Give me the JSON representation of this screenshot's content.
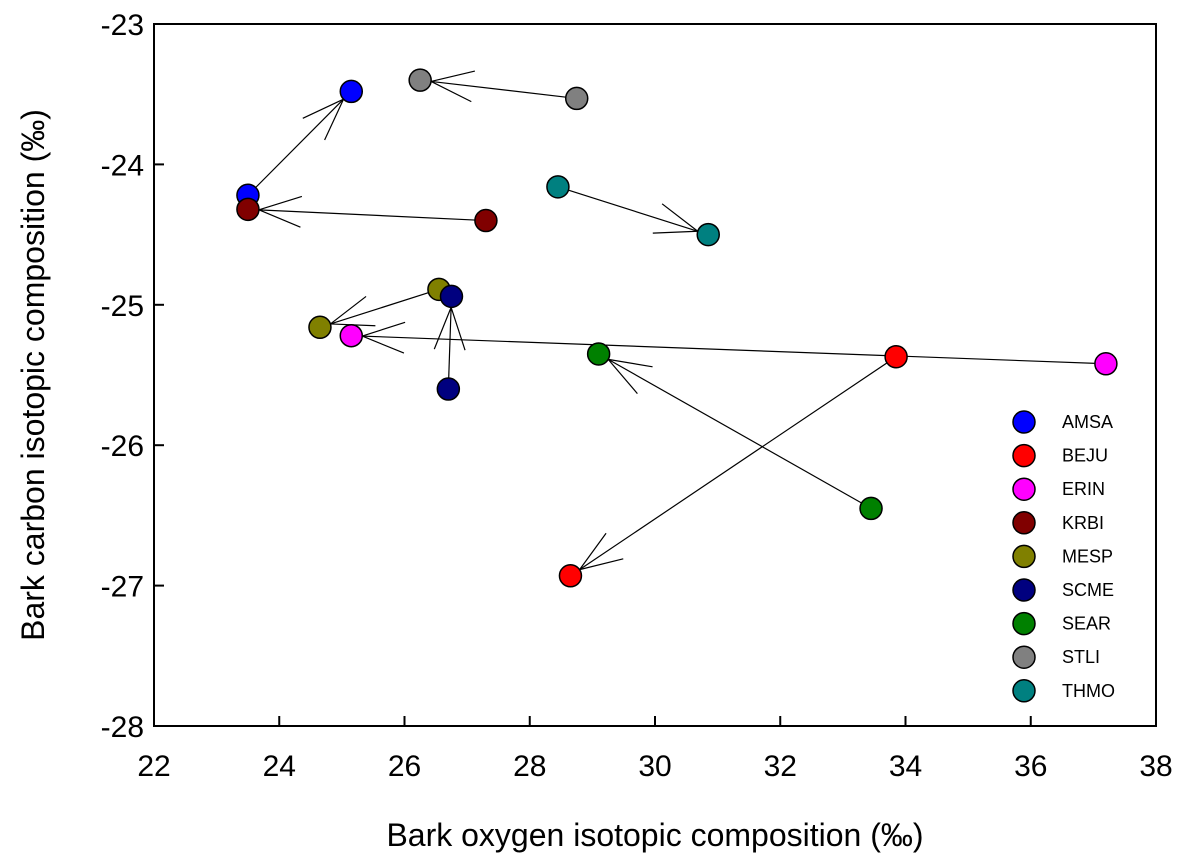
{
  "chart_data": {
    "type": "scatter",
    "title": "",
    "xlabel": "Bark oxygen isotopic composition (‰)",
    "ylabel": "Bark carbon isotopic composition (‰)",
    "xlim": [
      22,
      38
    ],
    "ylim": [
      -28,
      -23
    ],
    "xticks": [
      "22",
      "24",
      "26",
      "28",
      "30",
      "32",
      "34",
      "36",
      "38"
    ],
    "yticks": [
      "-28",
      "-27",
      "-26",
      "-25",
      "-24",
      "-23"
    ],
    "grid": false,
    "legend_position": "bottom-right",
    "series": [
      {
        "name": "AMSA",
        "color": "#0000ff",
        "points": [
          {
            "x": 23.5,
            "y": -24.22
          },
          {
            "x": 25.15,
            "y": -23.48
          }
        ],
        "arrow_from": 0,
        "arrow_to": 1
      },
      {
        "name": "BEJU",
        "color": "#ff0000",
        "points": [
          {
            "x": 33.85,
            "y": -25.37
          },
          {
            "x": 28.65,
            "y": -26.93
          }
        ],
        "arrow_from": 0,
        "arrow_to": 1
      },
      {
        "name": "ERIN",
        "color": "#ff00ff",
        "points": [
          {
            "x": 37.2,
            "y": -25.42
          },
          {
            "x": 25.15,
            "y": -25.22
          }
        ],
        "arrow_from": 0,
        "arrow_to": 1
      },
      {
        "name": "KRBI",
        "color": "#800000",
        "points": [
          {
            "x": 27.3,
            "y": -24.4
          },
          {
            "x": 23.5,
            "y": -24.32
          }
        ],
        "arrow_from": 0,
        "arrow_to": 1
      },
      {
        "name": "MESP",
        "color": "#808000",
        "points": [
          {
            "x": 26.55,
            "y": -24.89
          },
          {
            "x": 24.65,
            "y": -25.16
          }
        ],
        "arrow_from": 0,
        "arrow_to": 1
      },
      {
        "name": "SCME",
        "color": "#00007f",
        "points": [
          {
            "x": 26.7,
            "y": -25.6
          },
          {
            "x": 26.75,
            "y": -24.94
          }
        ],
        "arrow_from": 0,
        "arrow_to": 1
      },
      {
        "name": "SEAR",
        "color": "#008000",
        "points": [
          {
            "x": 33.45,
            "y": -26.45
          },
          {
            "x": 29.1,
            "y": -25.35
          }
        ],
        "arrow_from": 0,
        "arrow_to": 1
      },
      {
        "name": "STLI",
        "color": "#808080",
        "points": [
          {
            "x": 28.75,
            "y": -23.53
          },
          {
            "x": 26.25,
            "y": -23.4
          }
        ],
        "arrow_from": 0,
        "arrow_to": 1
      },
      {
        "name": "THMO",
        "color": "#008080",
        "points": [
          {
            "x": 28.45,
            "y": -24.16
          },
          {
            "x": 30.85,
            "y": -24.5
          }
        ],
        "arrow_from": 0,
        "arrow_to": 1
      }
    ]
  }
}
